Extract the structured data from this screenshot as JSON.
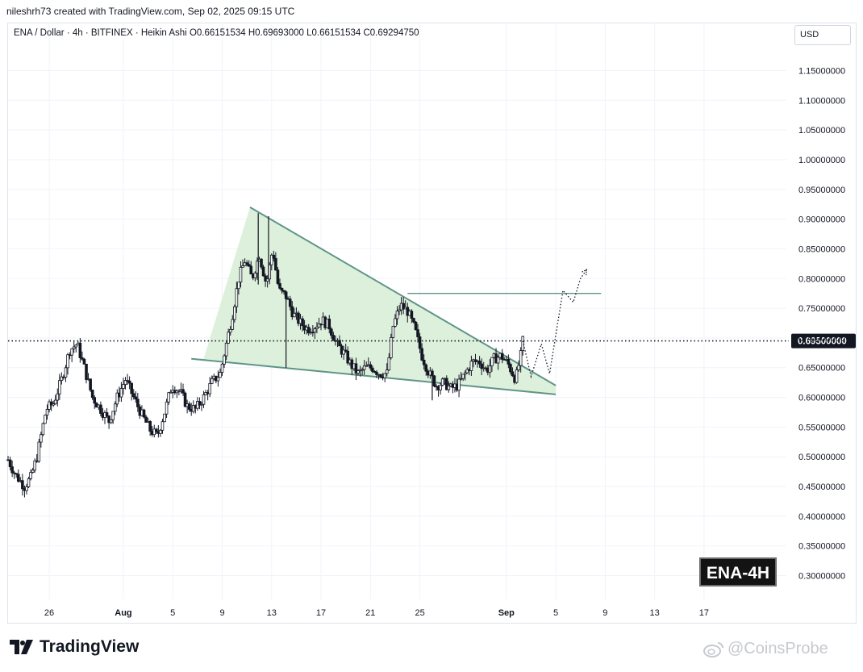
{
  "header": {
    "credit": "nileshrh73 created with TradingView.com, Sep 02, 2025 09:15 UTC"
  },
  "legend": {
    "symbol": "ENA / Dollar · 4h · BITFINEX · Heikin Ashi",
    "open": "O0.66151534",
    "high": "H0.69693000",
    "low": "L0.66151534",
    "close": "C0.69294750"
  },
  "currency_button": "USD",
  "badge": "ENA-4H",
  "brand": {
    "name": "TradingView",
    "logo_icon": "tradingview-logo-icon"
  },
  "watermark": {
    "text": "@CoinsProbe",
    "icon": "weibo-icon"
  },
  "colors": {
    "pattern_fill": "#d7edd5",
    "pattern_line": "#5f9488",
    "candle": "#131722",
    "current_price_bg": "#131722",
    "grid": "#f0f3fa"
  },
  "chart_data": {
    "type": "candlestick",
    "style": "Heikin Ashi",
    "interval": "4h",
    "exchange": "BITFINEX",
    "y_axis": {
      "ticks": [
        "1.15000000",
        "1.10000000",
        "1.05000000",
        "1.00000000",
        "0.95000000",
        "0.90000000",
        "0.85000000",
        "0.80000000",
        "0.75000000",
        "0.70000000",
        "0.65000000",
        "0.60000000",
        "0.55000000",
        "0.50000000",
        "0.45000000",
        "0.40000000",
        "0.35000000",
        "0.30000000"
      ],
      "ylim": [
        0.26,
        1.19
      ]
    },
    "x_axis": {
      "ticks": [
        "26",
        "Aug",
        "5",
        "9",
        "13",
        "17",
        "21",
        "25",
        "Sep",
        "5",
        "9",
        "13",
        "17"
      ],
      "xlim": [
        "2025-07-22 16:00",
        "2025-09-23 16:00"
      ]
    },
    "current_price": {
      "label": "0.69500000",
      "value": 0.695
    },
    "price_path": [
      [
        "2025-07-22 16:00",
        0.495
      ],
      [
        "2025-07-23 06:00",
        0.47
      ],
      [
        "2025-07-24 00:00",
        0.45
      ],
      [
        "2025-07-24 12:00",
        0.465
      ],
      [
        "2025-07-25 00:00",
        0.5
      ],
      [
        "2025-07-25 18:00",
        0.58
      ],
      [
        "2025-07-26 08:00",
        0.59
      ],
      [
        "2025-07-27 00:00",
        0.63
      ],
      [
        "2025-07-27 16:00",
        0.68
      ],
      [
        "2025-07-28 06:00",
        0.69
      ],
      [
        "2025-07-28 20:00",
        0.65
      ],
      [
        "2025-07-29 12:00",
        0.6
      ],
      [
        "2025-07-30 04:00",
        0.58
      ],
      [
        "2025-07-30 20:00",
        0.56
      ],
      [
        "2025-07-31 12:00",
        0.6
      ],
      [
        "2025-08-01 04:00",
        0.63
      ],
      [
        "2025-08-01 20:00",
        0.6
      ],
      [
        "2025-08-02 12:00",
        0.57
      ],
      [
        "2025-08-03 04:00",
        0.545
      ],
      [
        "2025-08-03 18:00",
        0.535
      ],
      [
        "2025-08-04 08:00",
        0.575
      ],
      [
        "2025-08-04 22:00",
        0.62
      ],
      [
        "2025-08-05 14:00",
        0.61
      ],
      [
        "2025-08-06 04:00",
        0.585
      ],
      [
        "2025-08-06 20:00",
        0.58
      ],
      [
        "2025-08-07 12:00",
        0.6
      ],
      [
        "2025-08-08 04:00",
        0.625
      ],
      [
        "2025-08-08 20:00",
        0.64
      ],
      [
        "2025-08-09 08:00",
        0.69
      ],
      [
        "2025-08-09 20:00",
        0.74
      ],
      [
        "2025-08-10 08:00",
        0.8
      ],
      [
        "2025-08-10 20:00",
        0.83
      ],
      [
        "2025-08-11 10:00",
        0.8
      ],
      [
        "2025-08-12 00:00",
        0.84
      ],
      [
        "2025-08-12 14:00",
        0.79
      ],
      [
        "2025-08-13 02:00",
        0.85
      ],
      [
        "2025-08-13 14:00",
        0.78
      ],
      [
        "2025-08-14 04:00",
        0.77
      ],
      [
        "2025-08-14 18:00",
        0.74
      ],
      [
        "2025-08-15 08:00",
        0.725
      ],
      [
        "2025-08-15 22:00",
        0.715
      ],
      [
        "2025-08-16 12:00",
        0.72
      ],
      [
        "2025-08-17 02:00",
        0.73
      ],
      [
        "2025-08-17 16:00",
        0.72
      ],
      [
        "2025-08-18 06:00",
        0.69
      ],
      [
        "2025-08-18 20:00",
        0.675
      ],
      [
        "2025-08-19 10:00",
        0.655
      ],
      [
        "2025-08-20 00:00",
        0.64
      ],
      [
        "2025-08-20 14:00",
        0.65
      ],
      [
        "2025-08-21 04:00",
        0.65
      ],
      [
        "2025-08-21 18:00",
        0.64
      ],
      [
        "2025-08-22 08:00",
        0.64
      ],
      [
        "2025-08-22 20:00",
        0.72
      ],
      [
        "2025-08-23 10:00",
        0.755
      ],
      [
        "2025-08-24 00:00",
        0.745
      ],
      [
        "2025-08-24 14:00",
        0.715
      ],
      [
        "2025-08-25 04:00",
        0.67
      ],
      [
        "2025-08-25 18:00",
        0.64
      ],
      [
        "2025-08-26 08:00",
        0.62
      ],
      [
        "2025-08-26 22:00",
        0.625
      ],
      [
        "2025-08-27 12:00",
        0.615
      ],
      [
        "2025-08-28 02:00",
        0.62
      ],
      [
        "2025-08-28 16:00",
        0.64
      ],
      [
        "2025-08-29 06:00",
        0.66
      ],
      [
        "2025-08-29 20:00",
        0.66
      ],
      [
        "2025-08-30 10:00",
        0.645
      ],
      [
        "2025-08-31 00:00",
        0.665
      ],
      [
        "2025-08-31 14:00",
        0.67
      ],
      [
        "2025-09-01 04:00",
        0.655
      ],
      [
        "2025-09-01 18:00",
        0.63
      ],
      [
        "2025-09-02 04:00",
        0.67
      ],
      [
        "2025-09-02 08:00",
        0.695
      ]
    ],
    "spikes": [
      {
        "date": "2025-08-11 22:00",
        "high": 0.91,
        "low": 0.79
      },
      {
        "date": "2025-08-12 18:00",
        "high": 0.905,
        "low": 0.8
      },
      {
        "date": "2025-08-14 04:00",
        "high": 0.78,
        "low": 0.65
      },
      {
        "date": "2025-08-26 00:00",
        "high": 0.64,
        "low": 0.595
      }
    ],
    "pattern": {
      "name": "falling wedge",
      "upper_line": [
        [
          "2025-08-11 06:00",
          0.92
        ],
        [
          "2025-09-05 00:00",
          0.62
        ]
      ],
      "lower_line": [
        [
          "2025-08-06 12:00",
          0.665
        ],
        [
          "2025-09-05 00:00",
          0.605
        ]
      ],
      "pole_start": [
        "2025-08-07 12:00",
        0.665
      ]
    },
    "resistance_line": {
      "value": 0.775,
      "from": "2025-08-24 00:00",
      "to": "2025-09-08 16:00"
    },
    "projection_path": [
      [
        "2025-09-02 08:00",
        0.695
      ],
      [
        "2025-09-03 00:00",
        0.635
      ],
      [
        "2025-09-03 20:00",
        0.69
      ],
      [
        "2025-09-04 12:00",
        0.64
      ],
      [
        "2025-09-05 14:00",
        0.78
      ],
      [
        "2025-09-06 10:00",
        0.76
      ],
      [
        "2025-09-07 00:00",
        0.8
      ],
      [
        "2025-09-07 12:00",
        0.815
      ]
    ]
  }
}
